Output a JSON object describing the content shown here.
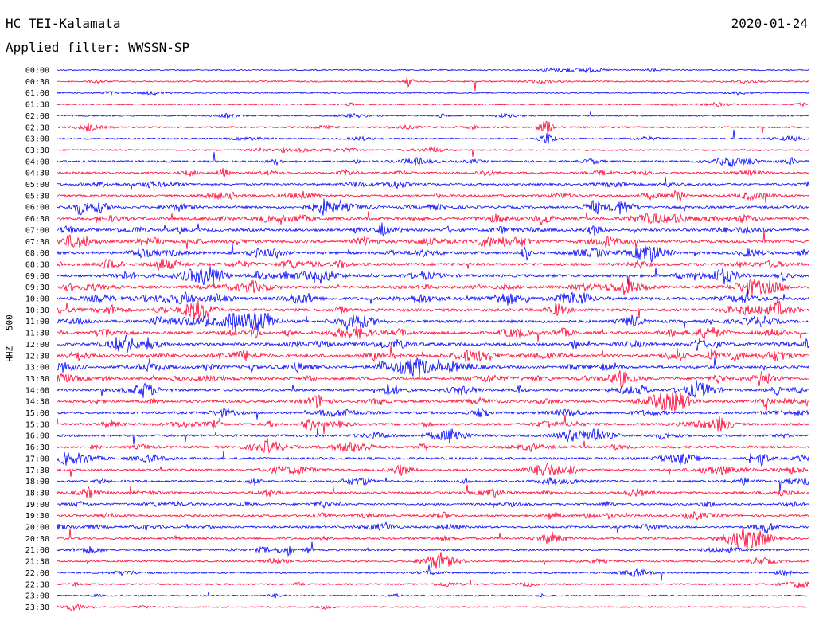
{
  "header": {
    "station": "HC TEI-Kalamata",
    "date": "2020-01-24",
    "filter": "Applied filter: WWSSN-SP"
  },
  "chart_data": {
    "type": "line",
    "ylabel": "HHZ - 500",
    "row_labels": [
      "00:00",
      "00:30",
      "01:00",
      "01:30",
      "02:00",
      "02:30",
      "03:00",
      "03:30",
      "04:00",
      "04:30",
      "05:00",
      "05:30",
      "06:00",
      "06:30",
      "07:00",
      "07:30",
      "08:00",
      "08:30",
      "09:00",
      "09:30",
      "10:00",
      "10:30",
      "11:00",
      "11:30",
      "12:00",
      "12:30",
      "13:00",
      "13:30",
      "14:00",
      "14:30",
      "15:00",
      "15:30",
      "16:00",
      "16:30",
      "17:00",
      "17:30",
      "18:00",
      "18:30",
      "19:00",
      "19:30",
      "20:00",
      "20:30",
      "21:00",
      "21:30",
      "22:00",
      "22:30",
      "23:00",
      "23:30"
    ],
    "activity": [
      0.15,
      0.2,
      0.1,
      0.15,
      0.18,
      0.35,
      0.25,
      0.3,
      0.5,
      0.5,
      0.55,
      0.6,
      0.75,
      0.85,
      0.9,
      0.9,
      0.9,
      0.9,
      0.95,
      0.95,
      1.0,
      0.95,
      0.95,
      0.95,
      0.95,
      0.95,
      0.9,
      0.85,
      0.85,
      0.8,
      0.75,
      0.7,
      0.7,
      0.7,
      0.7,
      0.6,
      0.6,
      0.6,
      0.55,
      0.55,
      0.55,
      0.5,
      0.45,
      0.4,
      0.35,
      0.3,
      0.2,
      0.15
    ],
    "series_colors": [
      "#0000ff",
      "#ff0033"
    ],
    "grid": false
  }
}
